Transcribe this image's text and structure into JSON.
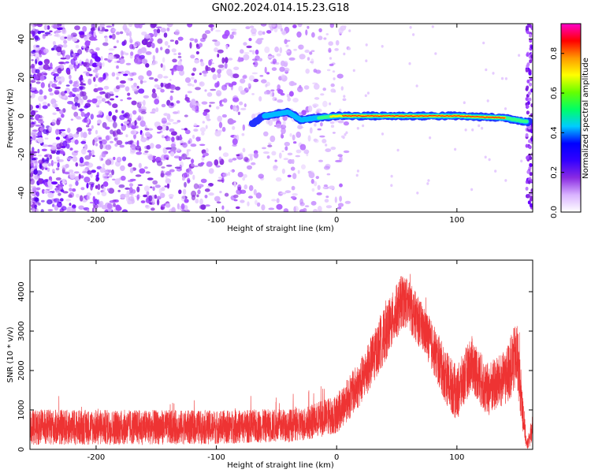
{
  "figure": {
    "title": "GN02.2024.014.15.23.G18"
  },
  "chart_data": [
    {
      "type": "heatmap",
      "title": "GN02.2024.014.15.23.G18",
      "xlabel": "Height of straight line (km)",
      "ylabel": "Frequency (Hz)",
      "xlim": [
        -255,
        163
      ],
      "ylim": [
        -50,
        48
      ],
      "xticks": [
        -200,
        -100,
        0,
        100
      ],
      "yticks": [
        -40,
        -20,
        0,
        20,
        40
      ],
      "colorbar": {
        "label": "Normalized spectral amplitude",
        "range": [
          0,
          0.95
        ],
        "ticks": [
          0.0,
          0.2,
          0.4,
          0.6,
          0.8
        ],
        "tick_labels": [
          "0.0",
          "0.2",
          "0.4",
          "0.6",
          "0.8"
        ],
        "colormap": [
          "#ffffff",
          "#d9b3ff",
          "#8a2be2",
          "#3300ff",
          "#0000ff",
          "#00ccff",
          "#00ff66",
          "#66ff00",
          "#ffff00",
          "#ff9900",
          "#ff0000",
          "#ff00cc"
        ]
      },
      "ridge": [
        {
          "x": -70,
          "y": -4
        },
        {
          "x": -60,
          "y": 0
        },
        {
          "x": -40,
          "y": 2
        },
        {
          "x": -30,
          "y": -2
        },
        {
          "x": 0,
          "y": 0
        },
        {
          "x": 50,
          "y": 0
        },
        {
          "x": 100,
          "y": 0
        },
        {
          "x": 140,
          "y": -1
        },
        {
          "x": 158,
          "y": -3
        }
      ],
      "noise_region": {
        "x_from": -255,
        "x_to": -10
      }
    },
    {
      "type": "line",
      "xlabel": "Height of straight line (km)",
      "ylabel": "SNR (10 * v/v)",
      "xlim": [
        -255,
        163
      ],
      "ylim": [
        0,
        4800
      ],
      "xticks": [
        -200,
        -100,
        0,
        100
      ],
      "yticks": [
        0,
        1000,
        2000,
        3000,
        4000
      ],
      "line_color": "#ee3333",
      "envelope": [
        {
          "x": -255,
          "mean": 560,
          "spread": 450
        },
        {
          "x": -200,
          "mean": 560,
          "spread": 450
        },
        {
          "x": -100,
          "mean": 560,
          "spread": 430
        },
        {
          "x": -30,
          "mean": 620,
          "spread": 420
        },
        {
          "x": 0,
          "mean": 900,
          "spread": 500
        },
        {
          "x": 20,
          "mean": 1700,
          "spread": 600
        },
        {
          "x": 40,
          "mean": 2900,
          "spread": 700
        },
        {
          "x": 55,
          "mean": 3800,
          "spread": 700
        },
        {
          "x": 60,
          "mean": 3650,
          "spread": 650
        },
        {
          "x": 75,
          "mean": 2900,
          "spread": 600
        },
        {
          "x": 90,
          "mean": 1900,
          "spread": 700
        },
        {
          "x": 100,
          "mean": 1400,
          "spread": 700
        },
        {
          "x": 112,
          "mean": 2200,
          "spread": 700
        },
        {
          "x": 125,
          "mean": 1500,
          "spread": 700
        },
        {
          "x": 140,
          "mean": 1800,
          "spread": 700
        },
        {
          "x": 150,
          "mean": 2400,
          "spread": 900
        },
        {
          "x": 155,
          "mean": 900,
          "spread": 500
        },
        {
          "x": 158,
          "mean": 100,
          "spread": 100
        },
        {
          "x": 163,
          "mean": 500,
          "spread": 400
        }
      ]
    }
  ]
}
